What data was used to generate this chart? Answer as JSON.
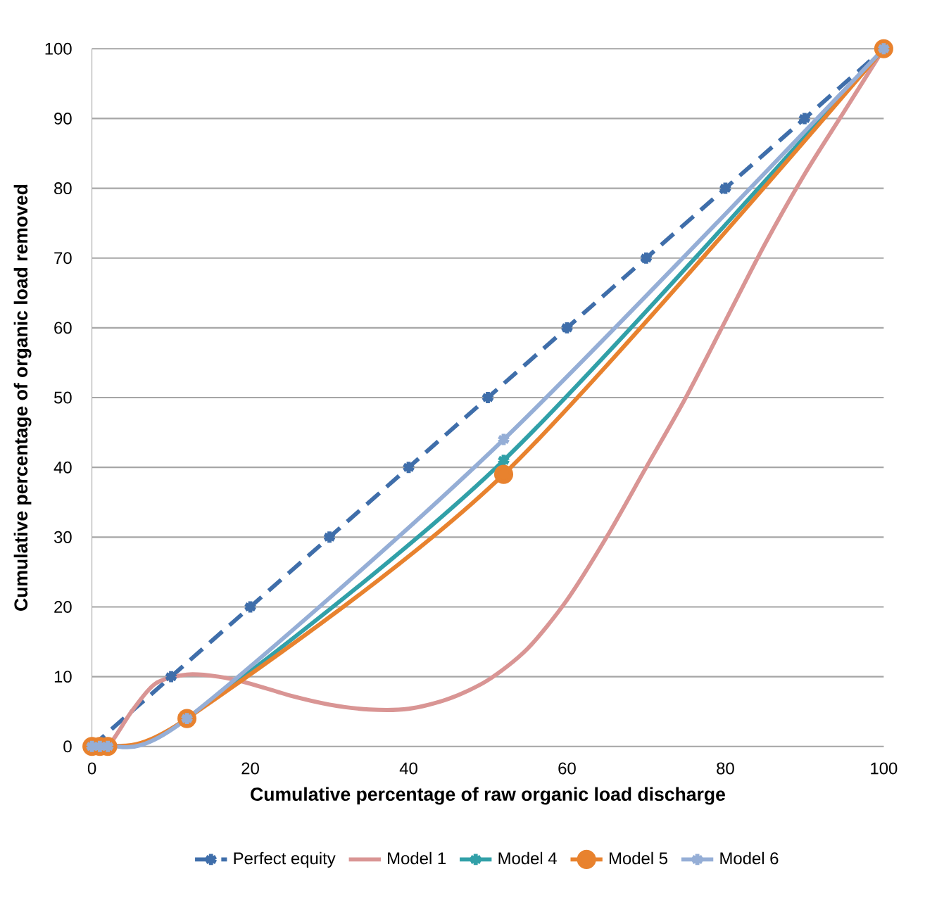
{
  "chart_data": {
    "type": "line",
    "xlabel": "Cumulative percentage of raw organic load discharge",
    "ylabel": "Cumulative percentage of organic load removed",
    "xlim": [
      0,
      100
    ],
    "ylim": [
      0,
      100
    ],
    "xticks": [
      0,
      20,
      40,
      60,
      80,
      100
    ],
    "yticks": [
      0,
      10,
      20,
      30,
      40,
      50,
      60,
      70,
      80,
      90,
      100
    ],
    "grid": "y",
    "legend": "bottom",
    "series": [
      {
        "name": "Perfect equity",
        "color": "#3f6eaa",
        "line_style": "dashed",
        "marker": "cross",
        "x": [
          0,
          10,
          20,
          30,
          40,
          50,
          60,
          70,
          80,
          90,
          100
        ],
        "values": [
          0,
          10,
          20,
          30,
          40,
          50,
          60,
          70,
          80,
          90,
          100
        ]
      },
      {
        "name": "Model 1",
        "color": "#d99594",
        "marker": "none",
        "x": [
          0,
          2,
          5,
          8,
          12,
          16,
          20,
          25,
          30,
          35,
          40,
          45,
          50,
          55,
          60,
          65,
          70,
          75,
          80,
          85,
          90,
          95,
          100
        ],
        "values": [
          0,
          0,
          5,
          9,
          10.3,
          10,
          9,
          7.3,
          6,
          5.3,
          5.4,
          6.8,
          9.5,
          14,
          21,
          30,
          40,
          50,
          61,
          72,
          82,
          91,
          100
        ]
      },
      {
        "name": "Model 4",
        "color": "#31a0a8",
        "marker": "cross",
        "x": [
          0,
          1,
          2,
          12,
          52,
          100
        ],
        "values": [
          0,
          0,
          0,
          4,
          41,
          100
        ]
      },
      {
        "name": "Model 5",
        "color": "#e8822e",
        "marker": "circle",
        "x": [
          0,
          1,
          2,
          12,
          52,
          100
        ],
        "values": [
          0,
          0,
          0,
          4,
          39,
          100
        ]
      },
      {
        "name": "Model 6",
        "color": "#95aed6",
        "marker": "cross",
        "x": [
          0,
          1,
          2,
          12,
          52,
          100
        ],
        "values": [
          0,
          0,
          0,
          4,
          44,
          100
        ]
      }
    ]
  }
}
